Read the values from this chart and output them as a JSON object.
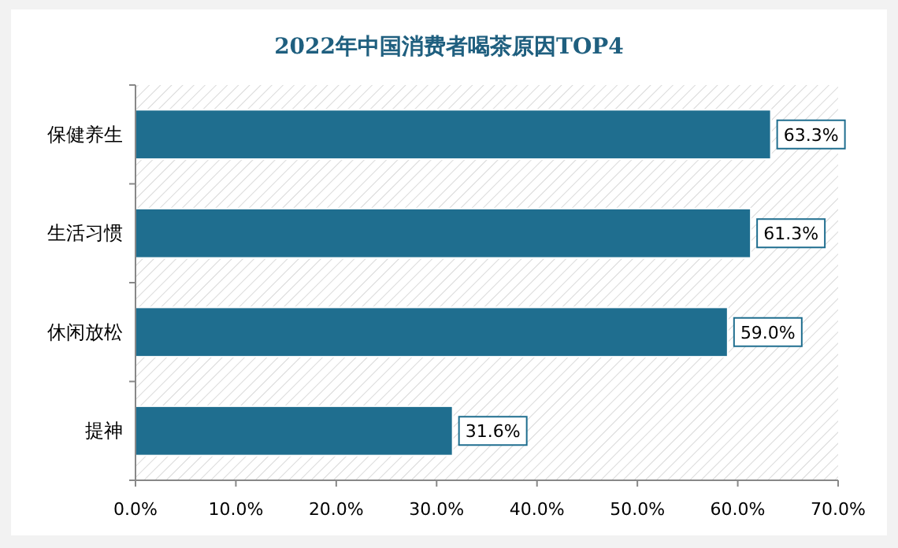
{
  "chart_data": {
    "type": "bar",
    "orientation": "horizontal",
    "title": "2022年中国消费者喝茶原因TOP4",
    "categories": [
      "保健养生",
      "生活习惯",
      "休闲放松",
      "提神"
    ],
    "values": [
      63.3,
      61.3,
      59.0,
      31.6
    ],
    "color": "#1f6e8f",
    "value_labels": [
      "63.3%",
      "61.3%",
      "59.0%",
      "31.6%"
    ],
    "xlim": [
      0,
      70
    ],
    "xticks": [
      {
        "value": 0,
        "label": "0.0%"
      },
      {
        "value": 10,
        "label": "10.0%"
      },
      {
        "value": 20,
        "label": "20.0%"
      },
      {
        "value": 30,
        "label": "30.0%"
      },
      {
        "value": 40,
        "label": "40.0%"
      },
      {
        "value": 50,
        "label": "50.0%"
      },
      {
        "value": 60,
        "label": "60.0%"
      },
      {
        "value": 70,
        "label": "70.0%"
      }
    ],
    "grid": false
  }
}
